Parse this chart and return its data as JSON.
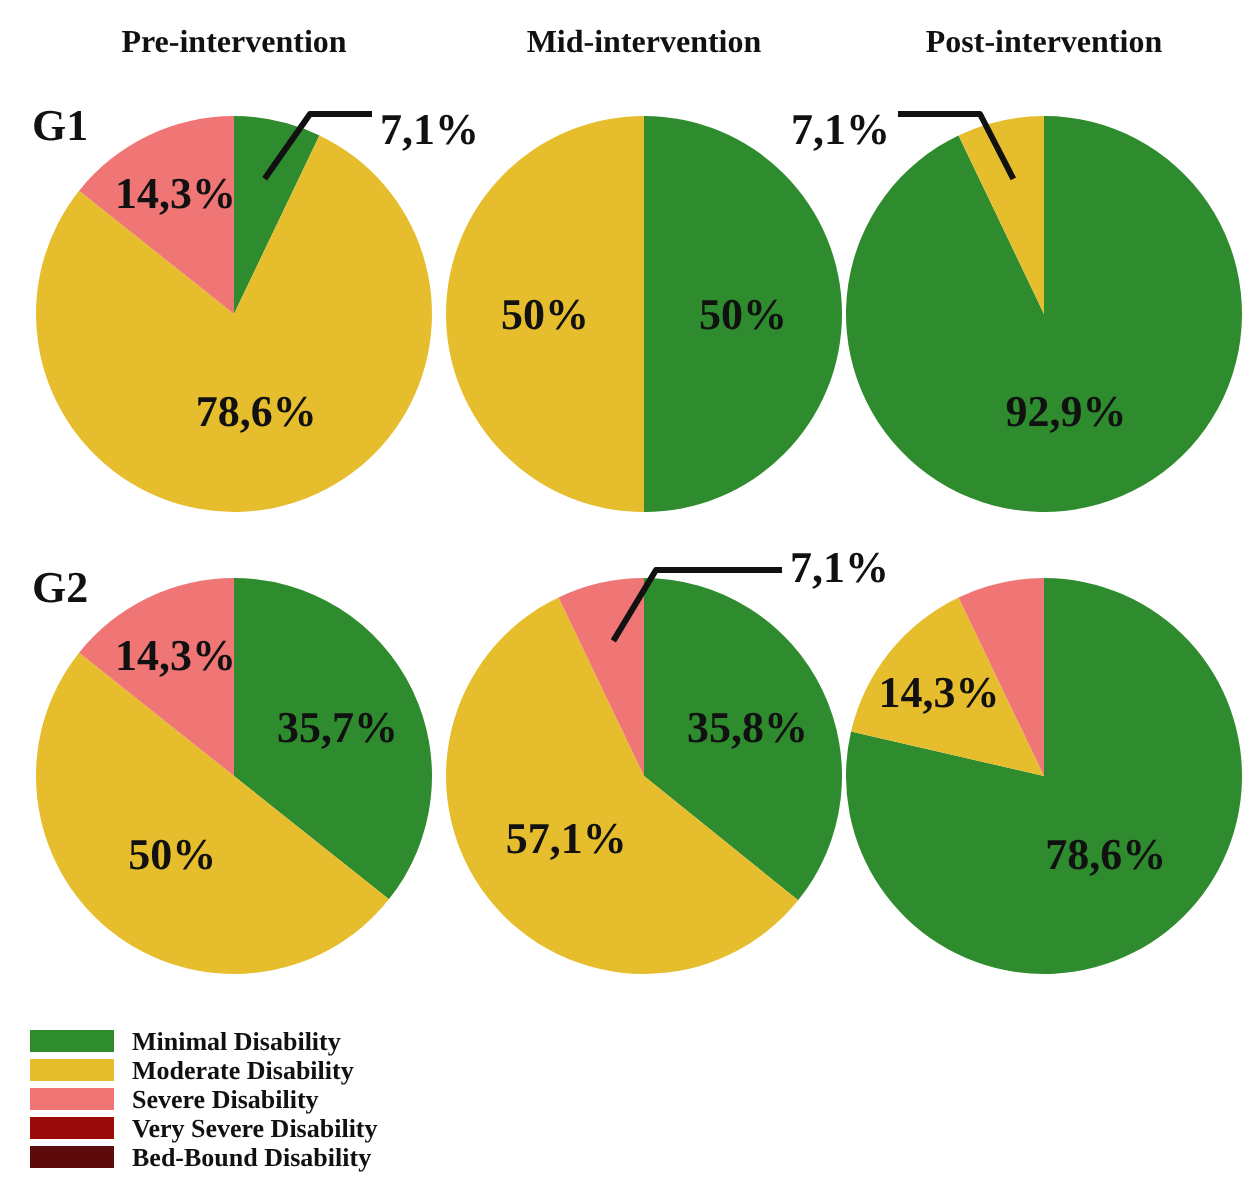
{
  "chart_data": [
    {
      "type": "pie",
      "title": "Pre-intervention",
      "annotations": [
        "G1"
      ],
      "categories": [
        null,
        null,
        null
      ],
      "values": [
        7.1,
        78.6,
        14.3
      ],
      "colors": [
        "#2e8b2e",
        "#e6bd2c",
        "#f07575"
      ],
      "value_labels": [
        "7,1%",
        "78,6%",
        "14,3%"
      ]
    },
    {
      "type": "pie",
      "title": "Mid-intervention",
      "categories": [
        null,
        null
      ],
      "values": [
        50,
        50
      ],
      "colors": [
        "#2e8b2e",
        "#e6bd2c"
      ],
      "value_labels": [
        "50%",
        "50%"
      ]
    },
    {
      "type": "pie",
      "title": "Post-intervention",
      "categories": [
        null,
        null
      ],
      "values": [
        92.9,
        7.1
      ],
      "colors": [
        "#2e8b2e",
        "#e6bd2c"
      ],
      "value_labels": [
        "92,9%",
        "7,1%"
      ]
    },
    {
      "type": "pie",
      "annotations": [
        "G2"
      ],
      "legend": "bottom",
      "categories": [
        "Minimal Disability",
        "Moderate Disability",
        "Severe Disability",
        "Very Severe Disability",
        "Bed-Bound Disability"
      ],
      "values": [
        35.7,
        50,
        14.3,
        0,
        0
      ],
      "colors": [
        "#2e8b2e",
        "#e6bd2c",
        "#f07575",
        "#9b0a0a",
        "#5c0a0a"
      ],
      "value_labels": [
        "35,7%",
        "50%",
        "14,3%",
        null,
        null
      ]
    },
    {
      "type": "pie",
      "categories": [
        null,
        null,
        null
      ],
      "values": [
        35.8,
        57.1,
        7.1
      ],
      "colors": [
        "#2e8b2e",
        "#e6bd2c",
        "#f07575"
      ],
      "value_labels": [
        "35,8%",
        "57,1%",
        "7,1%"
      ]
    },
    {
      "type": "pie",
      "categories": [
        null,
        null,
        null
      ],
      "values": [
        78.6,
        14.3,
        7.1
      ],
      "colors": [
        "#2e8b2e",
        "#e6bd2c",
        "#f07575"
      ],
      "value_labels": [
        "78,6%",
        "14,3%",
        null
      ]
    }
  ]
}
